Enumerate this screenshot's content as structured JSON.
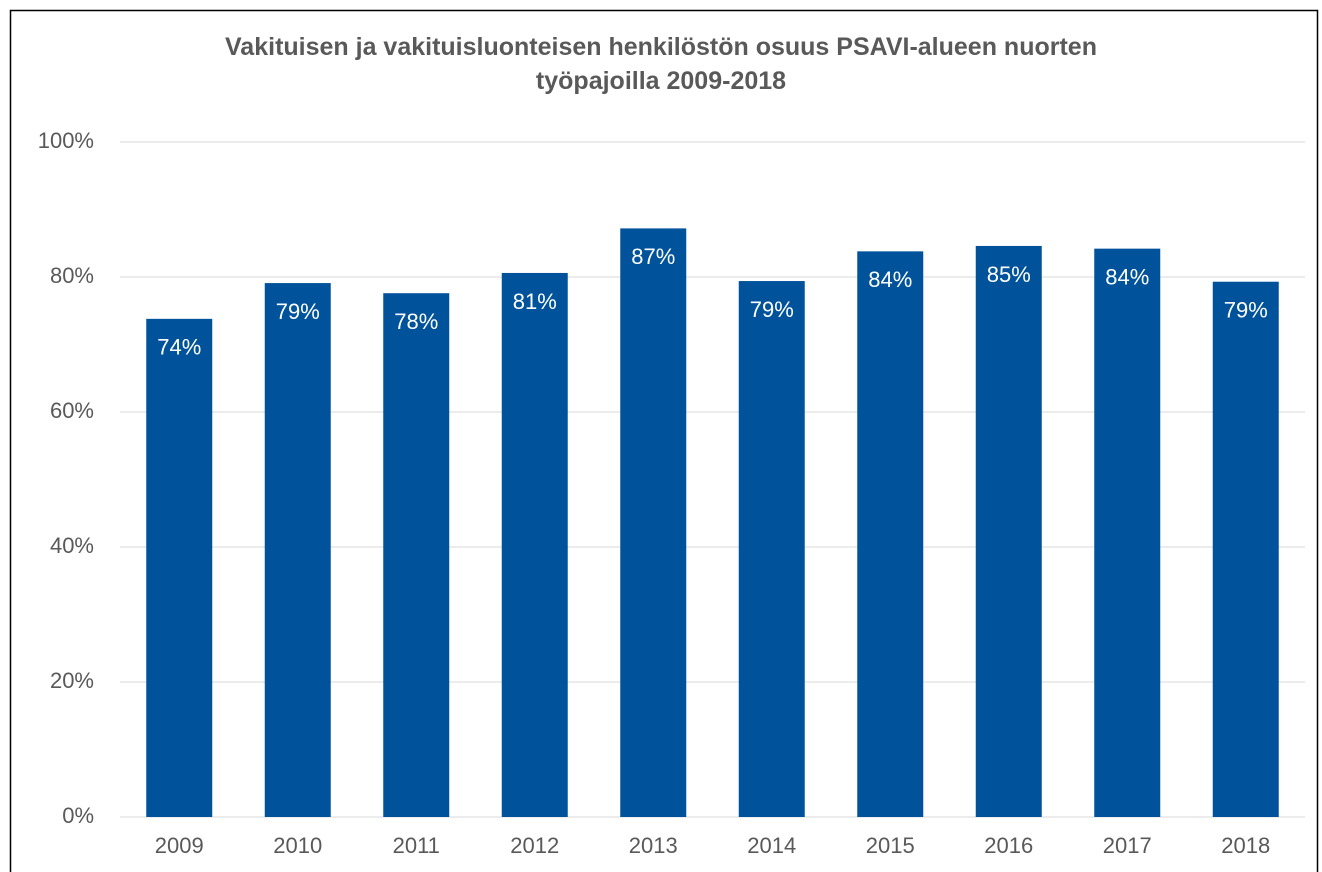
{
  "chart_data": {
    "type": "bar",
    "title": "Vakituisen ja vakituisluonteisen henkilöstön osuus PSAVI-alueen nuorten työpajoilla 2009-2018",
    "categories": [
      "2009",
      "2010",
      "2011",
      "2012",
      "2013",
      "2014",
      "2015",
      "2016",
      "2017",
      "2018"
    ],
    "values": [
      73.8,
      79.1,
      77.6,
      80.6,
      87.2,
      79.4,
      83.8,
      84.6,
      84.2,
      79.3
    ],
    "value_labels": [
      "74%",
      "79%",
      "78%",
      "81%",
      "87%",
      "79%",
      "84%",
      "85%",
      "84%",
      "79%"
    ],
    "color": "#00539b",
    "ylim": [
      0,
      100
    ],
    "yticks": [
      {
        "value": 0,
        "label": "0%"
      },
      {
        "value": 20,
        "label": "20%"
      },
      {
        "value": 40,
        "label": "40%"
      },
      {
        "value": 60,
        "label": "60%"
      },
      {
        "value": 80,
        "label": "80%"
      },
      {
        "value": 100,
        "label": "100%"
      }
    ],
    "grid": true
  }
}
